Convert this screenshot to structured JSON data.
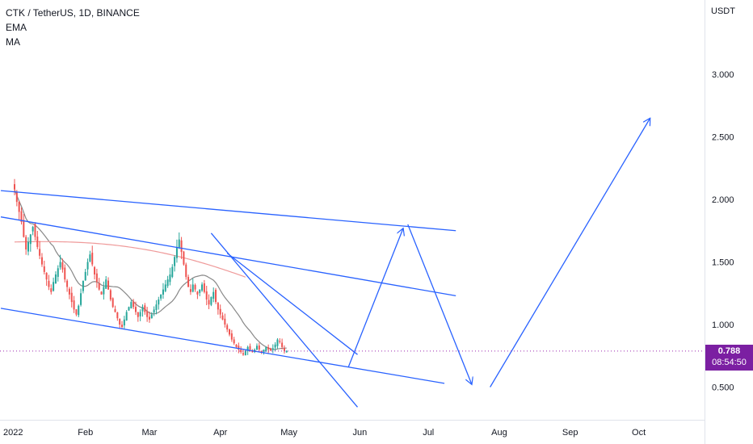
{
  "header": {
    "symbol_line": "CTK / TetherUS, 1D, BINANCE",
    "indicator_1": "EMA",
    "indicator_2": "MA"
  },
  "price_axis": {
    "currency": "USDT",
    "last_price": "0.788",
    "countdown": "08:54:50",
    "tag_color": "#7b1fa2"
  },
  "chart_data": {
    "type": "candlestick",
    "symbol": "CTK / TetherUS",
    "interval": "1D",
    "exchange": "BINANCE",
    "y_ticks": [
      "3.000",
      "2.500",
      "2.000",
      "1.500",
      "1.000",
      "0.500"
    ],
    "y_tick_values": [
      3.0,
      2.5,
      2.0,
      1.5,
      1.0,
      0.5
    ],
    "ylim": [
      0.26,
      3.3
    ],
    "x_ticks": [
      "2022",
      "Feb",
      "Mar",
      "Apr",
      "May",
      "Jun",
      "Jul",
      "Aug",
      "Sep",
      "Oct"
    ],
    "x_tick_days": [
      0,
      31,
      59,
      90,
      120,
      151,
      181,
      212,
      243,
      273
    ],
    "last_price": 0.788,
    "colors": {
      "up": "#26a69a",
      "down": "#ef5350",
      "ema": "#888888",
      "ma": "#ef9a9a",
      "drawing": "#2962ff",
      "last_line": "#9c27b0"
    },
    "closes": [
      2.08,
      1.98,
      1.9,
      1.82,
      1.7,
      1.6,
      1.66,
      1.72,
      1.78,
      1.7,
      1.62,
      1.55,
      1.48,
      1.42,
      1.36,
      1.3,
      1.26,
      1.34,
      1.4,
      1.45,
      1.5,
      1.44,
      1.36,
      1.3,
      1.24,
      1.18,
      1.12,
      1.08,
      1.15,
      1.25,
      1.35,
      1.42,
      1.5,
      1.56,
      1.48,
      1.4,
      1.34,
      1.28,
      1.24,
      1.3,
      1.36,
      1.28,
      1.2,
      1.14,
      1.1,
      1.05,
      1.0,
      0.98,
      1.04,
      1.1,
      1.14,
      1.18,
      1.14,
      1.1,
      1.06,
      1.1,
      1.14,
      1.1,
      1.06,
      1.04,
      1.08,
      1.12,
      1.16,
      1.2,
      1.24,
      1.28,
      1.32,
      1.36,
      1.4,
      1.46,
      1.54,
      1.62,
      1.68,
      1.58,
      1.48,
      1.38,
      1.3,
      1.26,
      1.32,
      1.28,
      1.24,
      1.28,
      1.32,
      1.26,
      1.2,
      1.16,
      1.22,
      1.26,
      1.18,
      1.12,
      1.08,
      1.04,
      1.0,
      0.96,
      0.92,
      0.88,
      0.85,
      0.82,
      0.8,
      0.78,
      0.76,
      0.79,
      0.82,
      0.8,
      0.78,
      0.8,
      0.83,
      0.8,
      0.78,
      0.8,
      0.82,
      0.8,
      0.79,
      0.81,
      0.84,
      0.88,
      0.86,
      0.82,
      0.79,
      0.788
    ],
    "drawings": [
      {
        "type": "trendline",
        "from": [
          -6,
          2.07
        ],
        "to": [
          193,
          1.75
        ]
      },
      {
        "type": "trendline",
        "from": [
          -6,
          1.86
        ],
        "to": [
          193,
          1.23
        ]
      },
      {
        "type": "trendline",
        "from": [
          -6,
          1.13
        ],
        "to": [
          188,
          0.53
        ]
      },
      {
        "type": "trendline",
        "from": [
          86,
          1.73
        ],
        "to": [
          150,
          0.34
        ]
      },
      {
        "type": "trendline",
        "from": [
          93,
          1.57
        ],
        "to": [
          150,
          0.76
        ]
      },
      {
        "type": "arrow",
        "from": [
          146,
          0.66
        ],
        "to": [
          170,
          1.77
        ]
      },
      {
        "type": "arrow",
        "from": [
          172,
          1.8
        ],
        "to": [
          200,
          0.52
        ]
      },
      {
        "type": "arrow",
        "from": [
          208,
          0.5
        ],
        "to": [
          278,
          2.65
        ]
      }
    ]
  }
}
